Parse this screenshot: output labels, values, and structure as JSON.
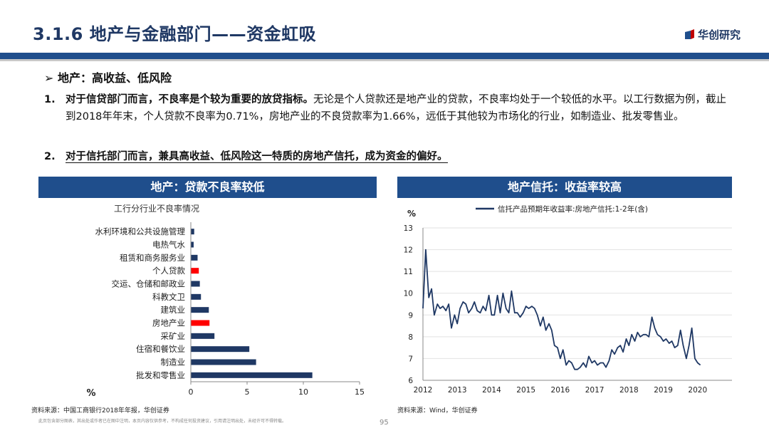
{
  "header": {
    "title": "3.1.6 地产与金融部门——资金虹吸",
    "logo_text": "华创研究"
  },
  "content": {
    "bullet_heading": "➢ 地产：高收益、低风险",
    "point1_num": "1.",
    "point1_bold": "对于信贷部门而言，不良率是个较为重要的放贷指标。",
    "point1_text": "无论是个人贷款还是地产业的贷款，不良率均处于一个较低的水平。以工行数据为例，截止到2018年年末，个人贷款不良率为0.71%，房地产业的不良贷款率为1.66%，远低于其他较为市场化的行业，如制造业、批发零售业。",
    "point2_num": "2.",
    "point2_bold": "对于信托部门而言，兼具高收益、低风险这一特质的房地产信托，成为资金的偏好。"
  },
  "left_panel": {
    "header": "地产：贷款不良率较低",
    "source": "资料来源：中国工商银行2018年年报，华创证券"
  },
  "right_panel": {
    "header": "地产信托：收益率较高",
    "source": "资料来源：Wind，华创证券"
  },
  "footer": {
    "disclaimer": "此页包含部分图表，其出处或作者已在图中注明，本页内容仅供参考，不构成任何投资建议，引用请注明出处，未经许可不得转载。",
    "page_number": "95"
  },
  "chart_data": [
    {
      "type": "bar",
      "orientation": "horizontal",
      "title": "工行分行业不良率情况",
      "unit_label": "%",
      "categories": [
        "水利环境和公共设施管理",
        "电热气水",
        "租赁和商务服务业",
        "个人贷款",
        "交运、仓储和邮政业",
        "科教文卫",
        "建筑业",
        "房地产业",
        "采矿业",
        "住宿和餐饮业",
        "制造业",
        "批发和零售业"
      ],
      "values": [
        0.3,
        0.25,
        0.6,
        0.71,
        0.8,
        0.9,
        1.6,
        1.66,
        2.1,
        5.2,
        5.8,
        10.8
      ],
      "highlight": [
        "个人贷款",
        "房地产业"
      ],
      "colors": {
        "default": "#1f3864",
        "highlight": "#ff0000"
      },
      "xlim": [
        0,
        15
      ],
      "xticks": [
        0,
        5,
        10,
        15
      ]
    },
    {
      "type": "line",
      "title": "",
      "ylabel": "%",
      "series": [
        {
          "name": "信托产品预期年收益率:房地产信托:1-2年(含)",
          "color": "#1f3864",
          "x": [
            2012.0,
            2012.08,
            2012.17,
            2012.25,
            2012.33,
            2012.42,
            2012.5,
            2012.58,
            2012.67,
            2012.75,
            2012.83,
            2012.92,
            2013.0,
            2013.08,
            2013.17,
            2013.25,
            2013.33,
            2013.42,
            2013.5,
            2013.58,
            2013.67,
            2013.75,
            2013.83,
            2013.92,
            2014.0,
            2014.08,
            2014.17,
            2014.25,
            2014.33,
            2014.42,
            2014.5,
            2014.58,
            2014.67,
            2014.75,
            2014.83,
            2014.92,
            2015.0,
            2015.08,
            2015.17,
            2015.25,
            2015.33,
            2015.42,
            2015.5,
            2015.58,
            2015.67,
            2015.75,
            2015.83,
            2015.92,
            2016.0,
            2016.08,
            2016.17,
            2016.25,
            2016.33,
            2016.42,
            2016.5,
            2016.58,
            2016.67,
            2016.75,
            2016.83,
            2016.92,
            2017.0,
            2017.08,
            2017.17,
            2017.25,
            2017.33,
            2017.42,
            2017.5,
            2017.58,
            2017.67,
            2017.75,
            2017.83,
            2017.92,
            2018.0,
            2018.08,
            2018.17,
            2018.25,
            2018.33,
            2018.42,
            2018.5,
            2018.58,
            2018.67,
            2018.75,
            2018.83,
            2018.92,
            2019.0,
            2019.08,
            2019.17,
            2019.25,
            2019.33,
            2019.42,
            2019.5,
            2019.58,
            2019.67,
            2019.75,
            2019.83,
            2019.92,
            2020.0,
            2020.08
          ],
          "y": [
            9.3,
            12.0,
            9.8,
            10.2,
            9.0,
            9.5,
            9.3,
            9.4,
            9.2,
            9.5,
            8.4,
            9.0,
            8.6,
            9.3,
            9.6,
            9.5,
            9.1,
            9.3,
            9.6,
            9.2,
            9.1,
            9.4,
            9.2,
            9.9,
            9.0,
            9.0,
            9.9,
            9.1,
            10.0,
            9.3,
            9.1,
            10.1,
            9.1,
            9.1,
            8.9,
            9.1,
            9.4,
            9.3,
            9.4,
            9.3,
            9.0,
            8.5,
            8.9,
            8.3,
            8.6,
            8.3,
            7.6,
            7.5,
            7.0,
            7.4,
            6.7,
            6.9,
            6.8,
            6.5,
            6.5,
            6.6,
            6.8,
            6.6,
            7.1,
            6.8,
            6.9,
            6.7,
            6.8,
            6.8,
            6.6,
            6.9,
            7.4,
            7.2,
            7.5,
            7.6,
            7.3,
            7.9,
            7.6,
            8.1,
            7.8,
            8.2,
            8.0,
            8.1,
            8.1,
            8.0,
            8.9,
            8.4,
            8.1,
            8.0,
            7.8,
            7.9,
            7.7,
            7.8,
            7.5,
            7.6,
            8.3,
            7.6,
            7.0,
            7.6,
            8.4,
            7.0,
            6.8,
            6.7
          ]
        }
      ],
      "xlim": [
        2012,
        2021
      ],
      "ylim": [
        6,
        13
      ],
      "xticks": [
        2012,
        2013,
        2014,
        2015,
        2016,
        2017,
        2018,
        2019,
        2020
      ],
      "yticks": [
        6,
        7,
        8,
        9,
        10,
        11,
        12,
        13
      ],
      "legend_position": "top"
    }
  ]
}
